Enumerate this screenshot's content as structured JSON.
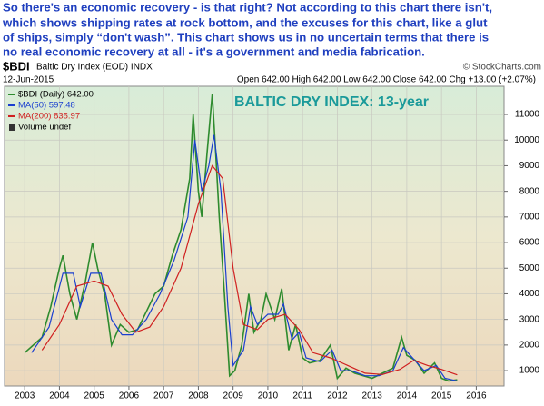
{
  "annotation": [
    "So there's an economic recovery - is that right? Not according to this chart there isn't,",
    "which shows shipping rates at rock bottom, and the excuses for this chart, like a glut",
    "of ships, simply “don't wash”. This chart shows us in no uncertain terms that there is",
    "no real economic recovery at all - it's a government and media fabrication."
  ],
  "chart_data": {
    "type": "line",
    "symbol": "$BDI",
    "name": "Baltic Dry Index (EOD) INDX",
    "source": "© StockCharts.com",
    "date": "12-Jun-2015",
    "quote": "Open 642.00 High 642.00 Low 642.00 Close 642.00 Chg +13.00 (+2.07%)",
    "title": "BALTIC DRY INDEX: 13-year",
    "volume_label": "Volume undef",
    "xlim": [
      2002.42,
      2016.8
    ],
    "xticks": [
      2003,
      2004,
      2005,
      2006,
      2007,
      2008,
      2009,
      2010,
      2011,
      2012,
      2013,
      2014,
      2015,
      2016
    ],
    "ylim": [
      400,
      12100
    ],
    "yticks": [
      1000,
      2000,
      3000,
      4000,
      5000,
      6000,
      7000,
      8000,
      9000,
      10000,
      11000
    ],
    "grid": true,
    "series": [
      {
        "name": "$BDI (Daily) 642.00",
        "color": "#2e8b2e",
        "x": [
          2003.0,
          2003.25,
          2003.5,
          2003.75,
          2004.0,
          2004.1,
          2004.3,
          2004.5,
          2004.75,
          2004.95,
          2005.1,
          2005.3,
          2005.5,
          2005.75,
          2006.0,
          2006.25,
          2006.5,
          2006.75,
          2007.0,
          2007.25,
          2007.5,
          2007.75,
          2007.85,
          2008.0,
          2008.1,
          2008.25,
          2008.4,
          2008.5,
          2008.6,
          2008.75,
          2008.9,
          2009.05,
          2009.25,
          2009.45,
          2009.6,
          2009.8,
          2009.95,
          2010.2,
          2010.4,
          2010.6,
          2010.8,
          2011.0,
          2011.2,
          2011.5,
          2011.8,
          2012.0,
          2012.25,
          2012.5,
          2012.75,
          2013.0,
          2013.3,
          2013.6,
          2013.85,
          2014.0,
          2014.25,
          2014.5,
          2014.8,
          2015.0,
          2015.2,
          2015.45
        ],
        "values": [
          1700,
          2000,
          2300,
          3500,
          5000,
          5500,
          4000,
          3000,
          4500,
          6000,
          5000,
          4000,
          2000,
          2800,
          2500,
          2600,
          3300,
          4000,
          4300,
          5500,
          6500,
          8500,
          11000,
          8000,
          7000,
          9500,
          11800,
          9500,
          7000,
          4000,
          800,
          1000,
          2000,
          4000,
          2500,
          3000,
          4000,
          3000,
          4200,
          1800,
          2800,
          1500,
          1300,
          1400,
          2000,
          700,
          1100,
          900,
          800,
          700,
          900,
          1100,
          2300,
          1600,
          1400,
          900,
          1300,
          700,
          600,
          642
        ]
      },
      {
        "name": "MA(50) 597.48",
        "color": "#1a3fd0",
        "x": [
          2003.2,
          2003.7,
          2004.1,
          2004.4,
          2004.6,
          2004.9,
          2005.2,
          2005.5,
          2005.8,
          2006.1,
          2006.5,
          2006.9,
          2007.3,
          2007.7,
          2007.9,
          2008.1,
          2008.3,
          2008.45,
          2008.65,
          2008.85,
          2009.0,
          2009.3,
          2009.5,
          2009.7,
          2010.0,
          2010.3,
          2010.45,
          2010.7,
          2010.9,
          2011.1,
          2011.5,
          2011.85,
          2012.1,
          2012.4,
          2012.8,
          2013.2,
          2013.6,
          2013.9,
          2014.1,
          2014.5,
          2014.85,
          2015.1,
          2015.45
        ],
        "values": [
          1700,
          2700,
          4800,
          4800,
          3500,
          4800,
          4800,
          3000,
          2400,
          2400,
          3000,
          4000,
          5300,
          7000,
          10000,
          8000,
          9000,
          10200,
          8000,
          3500,
          1200,
          1800,
          3500,
          2800,
          3200,
          3200,
          3600,
          2200,
          2500,
          1500,
          1350,
          1800,
          1000,
          1000,
          800,
          800,
          1000,
          1900,
          1600,
          1000,
          1200,
          700,
          597
        ]
      },
      {
        "name": "MA(200) 835.97",
        "color": "#d02020",
        "x": [
          2003.5,
          2004.0,
          2004.5,
          2005.0,
          2005.4,
          2005.8,
          2006.2,
          2006.6,
          2007.0,
          2007.5,
          2008.0,
          2008.4,
          2008.7,
          2009.0,
          2009.3,
          2009.7,
          2010.0,
          2010.5,
          2010.9,
          2011.3,
          2011.8,
          2012.3,
          2012.8,
          2013.3,
          2013.8,
          2014.2,
          2014.6,
          2015.0,
          2015.45
        ],
        "values": [
          1800,
          2800,
          4300,
          4500,
          4300,
          3200,
          2500,
          2700,
          3500,
          5000,
          7500,
          9000,
          8500,
          5000,
          2800,
          2600,
          3000,
          3200,
          2600,
          1700,
          1500,
          1200,
          900,
          850,
          1050,
          1400,
          1200,
          1050,
          836
        ]
      }
    ]
  }
}
